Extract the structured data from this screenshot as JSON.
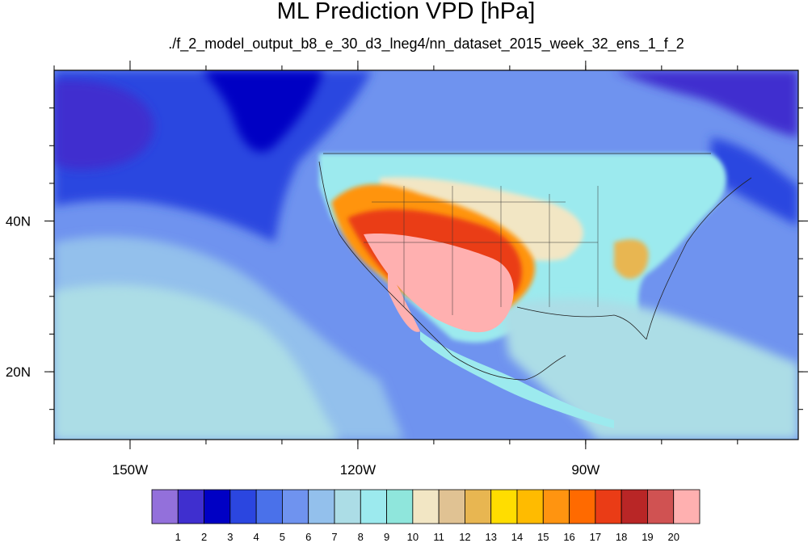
{
  "title": "ML Prediction VPD [hPa]",
  "subtitle": "./f_2_model_output_b8_e_30_d3_lneg4/nn_dataset_2015_week_32_ens_1_f_2",
  "map": {
    "lon_range": [
      -160,
      -62
    ],
    "lat_range": [
      11,
      60
    ],
    "x_ticks": [
      {
        "value": -150,
        "label": "150W"
      },
      {
        "value": -120,
        "label": "120W"
      },
      {
        "value": -90,
        "label": "90W"
      }
    ],
    "y_ticks": [
      {
        "value": 40,
        "label": "40N"
      },
      {
        "value": 20,
        "label": "20N"
      }
    ]
  },
  "colorbar": {
    "colors": [
      "#9370db",
      "#3f2fcf",
      "#0000c4",
      "#2b46e0",
      "#4a71ea",
      "#6f93ef",
      "#93c0ec",
      "#acdde6",
      "#9ceaee",
      "#8fe6dc",
      "#f2e6c4",
      "#e0c293",
      "#e8b651",
      "#ffdd00",
      "#ffbb00",
      "#ff9410",
      "#ff6a00",
      "#ea3c16",
      "#b92626",
      "#d05252",
      "#ffb0b0"
    ],
    "labels": [
      "1",
      "2",
      "3",
      "4",
      "5",
      "6",
      "7",
      "8",
      "9",
      "10",
      "11",
      "12",
      "13",
      "14",
      "15",
      "16",
      "17",
      "18",
      "19",
      "20"
    ]
  }
}
